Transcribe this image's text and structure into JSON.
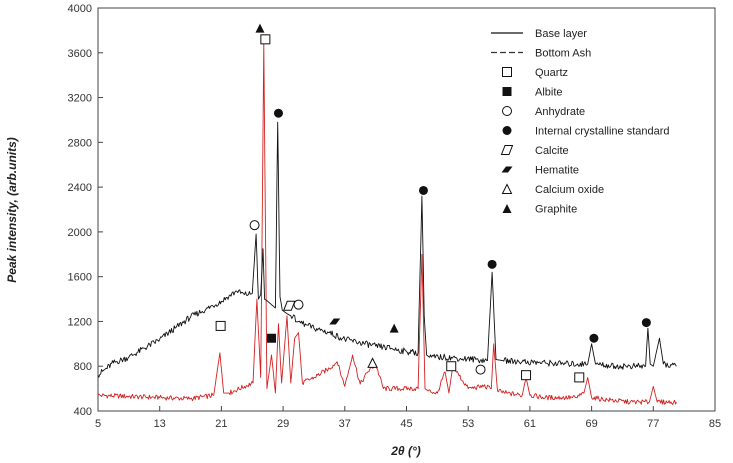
{
  "chart_data": {
    "type": "line",
    "title": "",
    "xlabel": "2θ (°)",
    "ylabel": "Peak intensity, (arb.units)",
    "xlim": [
      5,
      85
    ],
    "ylim": [
      400,
      4000
    ],
    "x_ticks": [
      "5",
      "13",
      "21",
      "29",
      "37",
      "45",
      "53",
      "61",
      "69",
      "77",
      "85"
    ],
    "y_ticks": [
      "400",
      "800",
      "1200",
      "1600",
      "2000",
      "2400",
      "2800",
      "3200",
      "3600",
      "4000"
    ],
    "grid": false,
    "legend_position": "top-right",
    "series": [
      {
        "name": "Base layer",
        "color": "#111111",
        "line_style": "solid",
        "x": [
          5,
          7,
          9,
          11,
          13,
          15,
          17,
          19,
          21,
          22,
          23,
          24,
          25,
          25.5,
          25.8,
          26.1,
          26.4,
          26.6,
          27,
          27.5,
          28,
          28.3,
          28.6,
          28.9,
          29.5,
          30,
          31,
          32,
          33,
          35,
          37,
          39,
          41,
          43,
          45,
          46.5,
          47,
          47.3,
          47.6,
          48,
          50,
          52,
          54,
          55.5,
          56.1,
          56.6,
          57.5,
          60,
          63,
          66,
          68.5,
          69,
          69.5,
          72,
          74,
          76,
          76.3,
          76.6,
          77,
          77.8,
          78.3,
          80
        ],
        "values": [
          720,
          830,
          880,
          960,
          1040,
          1140,
          1240,
          1310,
          1380,
          1430,
          1470,
          1440,
          1450,
          1980,
          1400,
          1440,
          1850,
          1400,
          1380,
          1350,
          1320,
          2980,
          1420,
          1300,
          1270,
          1250,
          1200,
          1170,
          1140,
          1100,
          1040,
          1010,
          980,
          960,
          930,
          920,
          2320,
          1250,
          900,
          880,
          880,
          870,
          860,
          850,
          1640,
          860,
          850,
          840,
          830,
          820,
          820,
          1000,
          820,
          800,
          800,
          800,
          1140,
          820,
          800,
          1050,
          820,
          800
        ]
      },
      {
        "name": "Bottom Ash",
        "color": "#d42222",
        "line_style": "dashed",
        "x": [
          5,
          9,
          13,
          17,
          20,
          20.8,
          21.3,
          22,
          24,
          25.1,
          25.6,
          26.1,
          26.5,
          26.9,
          27.5,
          28,
          28.4,
          28.8,
          29.5,
          30,
          30.5,
          31,
          31.5,
          33,
          35,
          36,
          37,
          38,
          39,
          40,
          41,
          42,
          44,
          46.5,
          47,
          47.4,
          47.8,
          49,
          50,
          50.5,
          51,
          53,
          55,
          56,
          56.3,
          56.8,
          58,
          60,
          60.5,
          61,
          63,
          65,
          67,
          68,
          68.5,
          69,
          71,
          74,
          76.5,
          77,
          77.5,
          80
        ],
        "values": [
          540,
          530,
          520,
          510,
          540,
          920,
          560,
          560,
          620,
          650,
          1400,
          700,
          3680,
          600,
          900,
          560,
          1180,
          650,
          1250,
          650,
          1050,
          1100,
          650,
          700,
          780,
          840,
          620,
          900,
          640,
          750,
          820,
          600,
          600,
          600,
          1800,
          600,
          580,
          560,
          750,
          560,
          800,
          600,
          620,
          600,
          1000,
          580,
          560,
          540,
          700,
          540,
          520,
          520,
          520,
          560,
          700,
          520,
          500,
          480,
          480,
          620,
          480,
          480
        ]
      }
    ],
    "legend": [
      {
        "label": "Base layer",
        "symbol": "solid-line"
      },
      {
        "label": "Bottom Ash",
        "symbol": "dashed-line"
      },
      {
        "label": "Quartz",
        "symbol": "open-square"
      },
      {
        "label": "Albite",
        "symbol": "filled-square"
      },
      {
        "label": "Anhydrate",
        "symbol": "open-circle"
      },
      {
        "label": "Internal crystalline standard",
        "symbol": "filled-circle"
      },
      {
        "label": "Calcite",
        "symbol": "open-parallelogram"
      },
      {
        "label": "Hematite",
        "symbol": "filled-parallelogram"
      },
      {
        "label": "Calcium oxide",
        "symbol": "open-triangle"
      },
      {
        "label": "Graphite",
        "symbol": "filled-triangle"
      }
    ],
    "annotations": [
      {
        "symbol": "filled-triangle",
        "x": 26.0,
        "y": 3820
      },
      {
        "symbol": "open-square",
        "x": 26.7,
        "y": 3720
      },
      {
        "symbol": "filled-circle",
        "x": 28.4,
        "y": 3060
      },
      {
        "symbol": "open-circle",
        "x": 25.3,
        "y": 2060
      },
      {
        "symbol": "open-square",
        "x": 20.9,
        "y": 1160
      },
      {
        "symbol": "filled-square",
        "x": 27.5,
        "y": 1050
      },
      {
        "symbol": "open-parallelogram",
        "x": 29.8,
        "y": 1340
      },
      {
        "symbol": "open-circle",
        "x": 31.0,
        "y": 1350
      },
      {
        "symbol": "filled-parallelogram",
        "x": 35.7,
        "y": 1200
      },
      {
        "symbol": "open-triangle",
        "x": 40.6,
        "y": 830
      },
      {
        "symbol": "filled-triangle",
        "x": 43.4,
        "y": 1140
      },
      {
        "symbol": "filled-circle",
        "x": 47.2,
        "y": 2370
      },
      {
        "symbol": "open-square",
        "x": 50.8,
        "y": 800
      },
      {
        "symbol": "open-circle",
        "x": 54.6,
        "y": 770
      },
      {
        "symbol": "filled-circle",
        "x": 56.1,
        "y": 1710
      },
      {
        "symbol": "open-square",
        "x": 60.5,
        "y": 720
      },
      {
        "symbol": "filled-circle",
        "x": 69.3,
        "y": 1050
      },
      {
        "symbol": "open-square",
        "x": 67.4,
        "y": 700
      },
      {
        "symbol": "filled-circle",
        "x": 76.1,
        "y": 1190
      }
    ]
  }
}
